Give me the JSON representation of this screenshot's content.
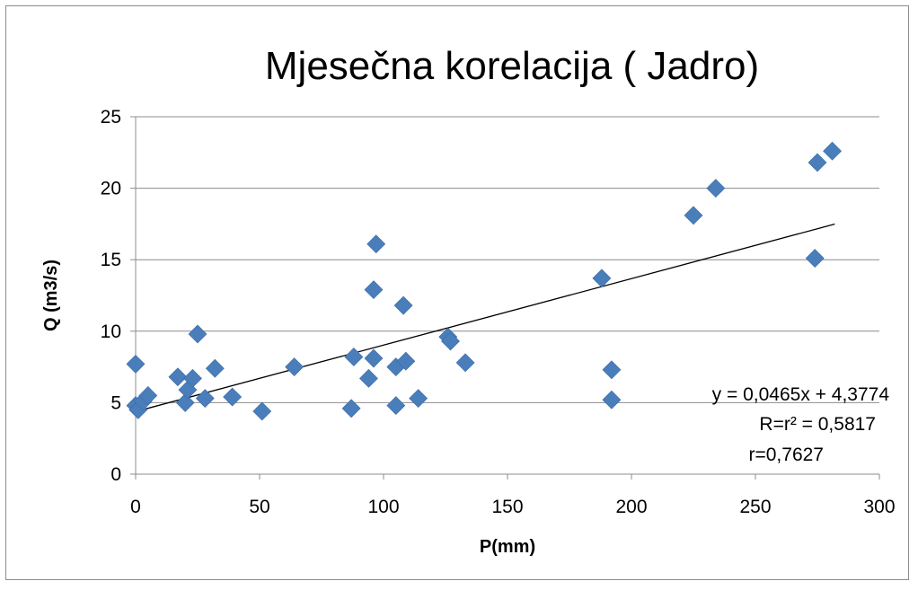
{
  "chart_data": {
    "type": "scatter",
    "title": "Mjesečna korelacija ( Jadro)",
    "xlabel": "P(mm)",
    "ylabel": "Q (m3/s)",
    "xlim": [
      0,
      300
    ],
    "ylim": [
      0,
      25
    ],
    "x_ticks": [
      "0",
      "50",
      "100",
      "150",
      "200",
      "250",
      "300"
    ],
    "y_ticks": [
      "0",
      "5",
      "10",
      "15",
      "20",
      "25"
    ],
    "grid": "horizontal",
    "marker": "diamond",
    "marker_color": "#4a7ebb",
    "trendline": {
      "type": "linear",
      "slope": 0.0465,
      "intercept": 4.3774,
      "x_range": [
        0,
        282
      ],
      "color": "#000000"
    },
    "annotations": [
      "y = 0,0465x + 4,3774",
      "R=r² = 0,5817",
      "r=0,7627"
    ],
    "points": [
      {
        "x": 0,
        "y": 7.7
      },
      {
        "x": 0,
        "y": 4.8
      },
      {
        "x": 1,
        "y": 4.5
      },
      {
        "x": 3,
        "y": 5.1
      },
      {
        "x": 5,
        "y": 5.5
      },
      {
        "x": 17,
        "y": 6.8
      },
      {
        "x": 20,
        "y": 5.0
      },
      {
        "x": 21,
        "y": 5.9
      },
      {
        "x": 23,
        "y": 6.7
      },
      {
        "x": 25,
        "y": 9.8
      },
      {
        "x": 28,
        "y": 5.3
      },
      {
        "x": 32,
        "y": 7.4
      },
      {
        "x": 39,
        "y": 5.4
      },
      {
        "x": 51,
        "y": 4.4
      },
      {
        "x": 64,
        "y": 7.5
      },
      {
        "x": 87,
        "y": 4.6
      },
      {
        "x": 88,
        "y": 8.2
      },
      {
        "x": 94,
        "y": 6.7
      },
      {
        "x": 96,
        "y": 8.1
      },
      {
        "x": 96,
        "y": 12.9
      },
      {
        "x": 97,
        "y": 16.1
      },
      {
        "x": 105,
        "y": 4.8
      },
      {
        "x": 105,
        "y": 7.5
      },
      {
        "x": 108,
        "y": 11.8
      },
      {
        "x": 109,
        "y": 7.9
      },
      {
        "x": 114,
        "y": 5.3
      },
      {
        "x": 126,
        "y": 9.6
      },
      {
        "x": 127,
        "y": 9.3
      },
      {
        "x": 133,
        "y": 7.8
      },
      {
        "x": 188,
        "y": 13.7
      },
      {
        "x": 192,
        "y": 7.3
      },
      {
        "x": 192,
        "y": 5.2
      },
      {
        "x": 225,
        "y": 18.1
      },
      {
        "x": 234,
        "y": 20.0
      },
      {
        "x": 274,
        "y": 15.1
      },
      {
        "x": 275,
        "y": 21.8
      },
      {
        "x": 281,
        "y": 22.6
      }
    ]
  }
}
